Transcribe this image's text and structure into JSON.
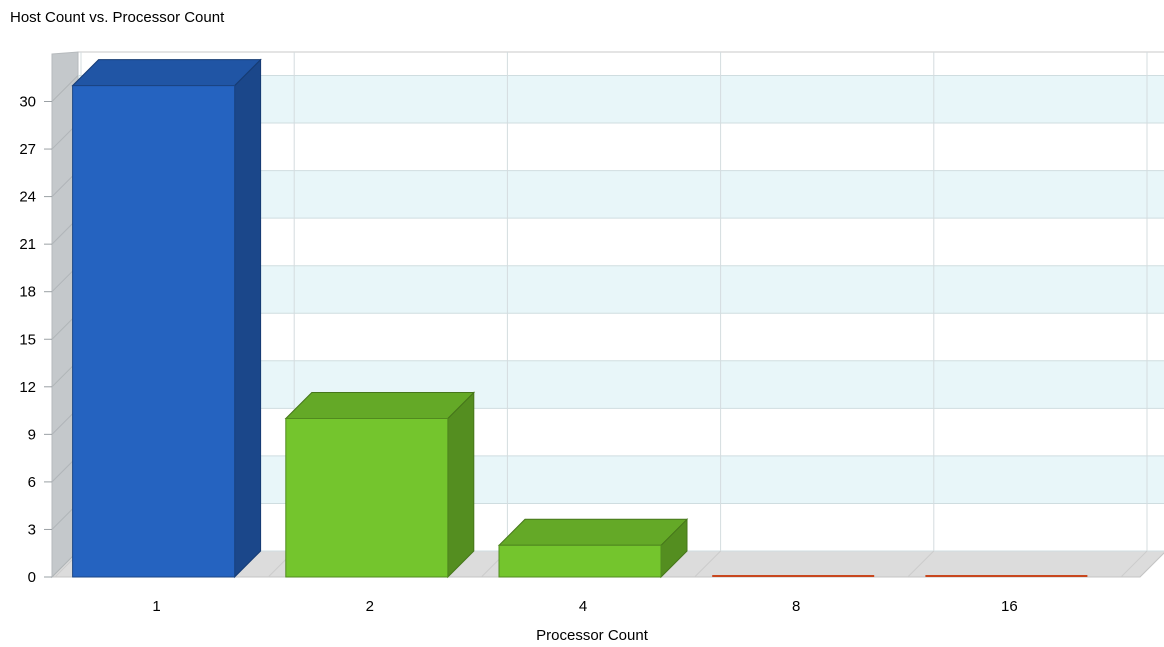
{
  "chart_data": {
    "type": "bar",
    "title": "Host Count vs. Processor Count",
    "xlabel": "Processor Count",
    "ylabel": "",
    "categories": [
      "1",
      "2",
      "4",
      "8",
      "16"
    ],
    "values": [
      31,
      10,
      2,
      0,
      0
    ],
    "bar_colors": [
      "#2563c0",
      "#74c52d",
      "#74c52d",
      "#c8471e",
      "#c8471e"
    ],
    "ylim": [
      0,
      33
    ],
    "yticks": [
      0,
      3,
      6,
      9,
      12,
      15,
      18,
      21,
      24,
      27,
      30
    ],
    "grid": true,
    "legend": "none",
    "style": "3d"
  }
}
